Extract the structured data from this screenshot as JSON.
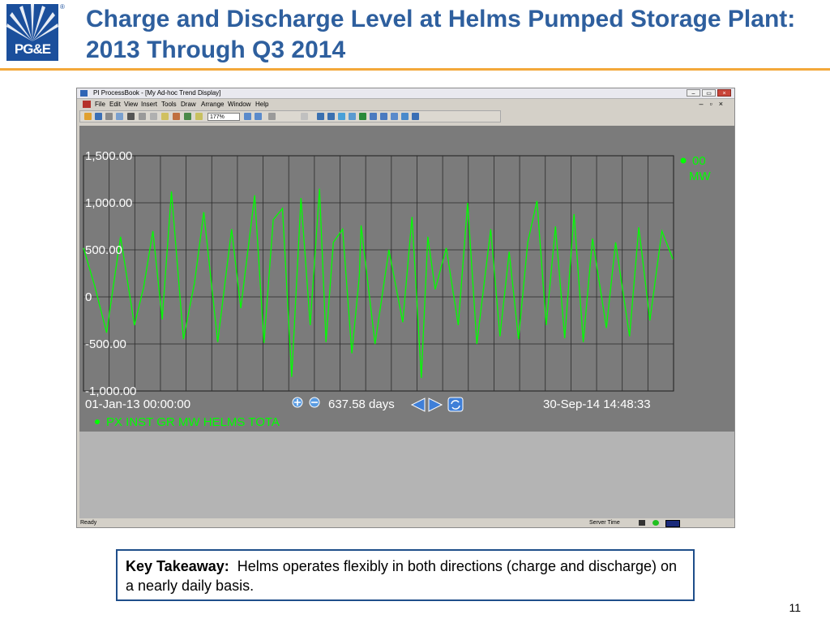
{
  "slide": {
    "logo_text": "PG&E",
    "logo_mark": "®",
    "title": "Charge and Discharge Level at Helms Pumped Storage Plant: 2013 Through Q3 2014",
    "takeaway_label": "Key Takeaway:",
    "takeaway_text": "Helms operates flexibly in both directions (charge and discharge) on a nearly daily basis.",
    "page_number": "11"
  },
  "window": {
    "title": "PI ProcessBook - [My Ad-hoc Trend Display]",
    "menu": [
      "File",
      "Edit",
      "View",
      "Insert",
      "Tools",
      "Draw",
      "Arrange",
      "Window",
      "Help"
    ],
    "zoom": "177%",
    "status_left": "Ready",
    "status_right": "Server Time"
  },
  "chart_data": {
    "type": "line",
    "y_tick_labels": [
      "1,500.00",
      "1,000.00",
      "500.00",
      "0",
      "-500.00",
      "-1,000.00"
    ],
    "y_ticks": [
      1500,
      1000,
      500,
      0,
      -500,
      -1000
    ],
    "ylim": [
      -1000,
      1500
    ],
    "x_start_label": "01-Jan-13 00:00:00",
    "x_end_label": "30-Sep-14 14:48:33",
    "duration_label": "637.58 days",
    "x_range_days": [
      0,
      637.58
    ],
    "legend_value": "00",
    "legend_unit": "MW",
    "series": [
      {
        "name": "PX INST GR MW HELMS TOTA",
        "color": "#00ff00",
        "values": [
          [
            0,
            520
          ],
          [
            12,
            120
          ],
          [
            25,
            -380
          ],
          [
            40,
            640
          ],
          [
            55,
            -300
          ],
          [
            65,
            100
          ],
          [
            75,
            700
          ],
          [
            85,
            -240
          ],
          [
            95,
            1120
          ],
          [
            108,
            -450
          ],
          [
            120,
            150
          ],
          [
            130,
            900
          ],
          [
            145,
            -480
          ],
          [
            160,
            720
          ],
          [
            170,
            -120
          ],
          [
            185,
            1080
          ],
          [
            195,
            -490
          ],
          [
            205,
            820
          ],
          [
            215,
            940
          ],
          [
            225,
            -850
          ],
          [
            235,
            1050
          ],
          [
            245,
            -300
          ],
          [
            255,
            1150
          ],
          [
            262,
            -480
          ],
          [
            270,
            580
          ],
          [
            280,
            720
          ],
          [
            290,
            -600
          ],
          [
            298,
            220
          ],
          [
            300,
            760
          ],
          [
            315,
            -500
          ],
          [
            330,
            500
          ],
          [
            345,
            -270
          ],
          [
            355,
            850
          ],
          [
            365,
            -860
          ],
          [
            372,
            640
          ],
          [
            380,
            80
          ],
          [
            392,
            520
          ],
          [
            405,
            -300
          ],
          [
            415,
            1000
          ],
          [
            425,
            -500
          ],
          [
            440,
            720
          ],
          [
            450,
            -420
          ],
          [
            460,
            480
          ],
          [
            470,
            -450
          ],
          [
            480,
            580
          ],
          [
            490,
            1020
          ],
          [
            500,
            -300
          ],
          [
            510,
            750
          ],
          [
            520,
            -440
          ],
          [
            530,
            880
          ],
          [
            540,
            -480
          ],
          [
            550,
            620
          ],
          [
            565,
            -330
          ],
          [
            575,
            580
          ],
          [
            590,
            -420
          ],
          [
            600,
            740
          ],
          [
            612,
            -250
          ],
          [
            625,
            700
          ],
          [
            637,
            400
          ]
        ]
      }
    ],
    "grid": true,
    "legend_position": "right"
  }
}
